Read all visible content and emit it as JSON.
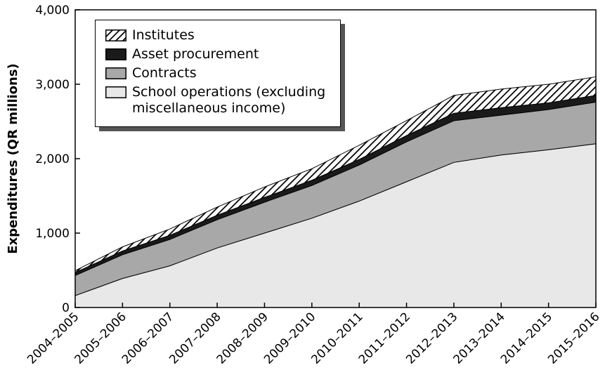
{
  "chart_data": {
    "type": "stacked_area",
    "y_label": "Expenditures (QR millions)",
    "categories": [
      "2004–2005",
      "2005–2006",
      "2006–2007",
      "2007–2008",
      "2008–2009",
      "2009–2010",
      "2010–2011",
      "2011–2012",
      "2012–2013",
      "2013–2014",
      "2014–2015",
      "2015–2016"
    ],
    "series": [
      {
        "name": "School operations (excluding miscellaneous income)",
        "color": "#e8e8e8",
        "values": [
          160,
          390,
          560,
          800,
          1000,
          1200,
          1430,
          1690,
          1950,
          2050,
          2120,
          2200
        ]
      },
      {
        "name": "Contracts",
        "color": "#a8a8a8",
        "values": [
          270,
          320,
          355,
          380,
          415,
          440,
          485,
          536,
          560,
          535,
          540,
          560
        ]
      },
      {
        "name": "Asset procurement",
        "color": "#1a1a1a",
        "values": [
          40,
          50,
          55,
          60,
          65,
          70,
          75,
          85,
          100,
          100,
          90,
          90
        ]
      },
      {
        "name": "Institutes",
        "color": "#000000",
        "pattern": "hatch",
        "values": [
          25,
          55,
          85,
          110,
          140,
          155,
          190,
          200,
          240,
          250,
          250,
          250
        ]
      }
    ],
    "ylim": [
      0,
      4000
    ],
    "yticks": [
      0,
      {
        "value": 1000,
        "label": "1,000"
      },
      {
        "value": 2000,
        "label": "2,000"
      },
      {
        "value": 3000,
        "label": "3,000"
      },
      {
        "value": 4000,
        "label": "4,000"
      }
    ],
    "legend": "top-left"
  }
}
